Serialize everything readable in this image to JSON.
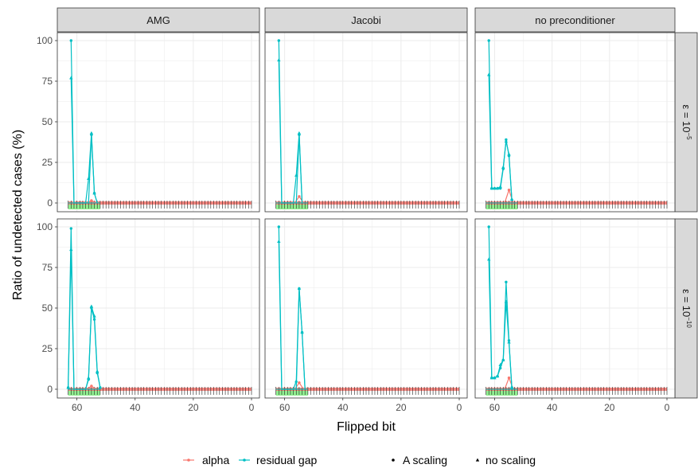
{
  "chart_data": {
    "type": "line",
    "facet_columns": [
      "AMG",
      "Jacobi",
      "no preconditioner"
    ],
    "facet_rows": [
      {
        "prefix": "ε = 10",
        "exp": "−5"
      },
      {
        "prefix": "ε = 10",
        "exp": "−10"
      }
    ],
    "xlabel": "Flipped bit",
    "ylabel": "Ratio of undetected cases (%)",
    "xlim": [
      64,
      0
    ],
    "ylim": [
      0,
      100
    ],
    "x_ticks": [
      60,
      40,
      20,
      0
    ],
    "y_ticks": [
      0,
      25,
      50,
      75,
      100
    ],
    "x_tick_labels": [
      "60",
      "40",
      "20",
      "0"
    ],
    "y_tick_labels": [
      "0",
      "25",
      "50",
      "75",
      "100"
    ],
    "legend": {
      "placement": "bottom",
      "colour_entries": [
        {
          "name": "alpha",
          "color": "#F8766D"
        },
        {
          "name": "residual gap",
          "color": "#00BFC4"
        }
      ],
      "shape_entries": [
        {
          "name": "A scaling",
          "shape": "circle"
        },
        {
          "name": "no scaling",
          "shape": "triangle"
        }
      ]
    },
    "colors": {
      "alpha": "#F8766D",
      "residual_gap": "#00BFC4",
      "green_band": "#90EE90",
      "strip_fill": "#D9D9D9",
      "grid": "#EBEBEB"
    },
    "green_band_x": [
      63,
      52
    ],
    "residual_gap_base": {
      "x_start": 63,
      "x_end": 52,
      "y": 0
    },
    "panels": [
      {
        "row": 0,
        "col": 0,
        "residual_gap": [
          {
            "scaling": "A scaling",
            "points": [
              [
                62,
                100
              ],
              [
                61,
                0
              ],
              [
                56,
                0
              ],
              [
                55,
                42
              ],
              [
                54,
                6
              ],
              [
                53,
                0
              ]
            ]
          },
          {
            "scaling": "no scaling",
            "points": [
              [
                62,
                77
              ],
              [
                61,
                0
              ],
              [
                57,
                0
              ],
              [
                56,
                15
              ],
              [
                55,
                43
              ],
              [
                54,
                6
              ],
              [
                53,
                0
              ]
            ]
          }
        ],
        "alpha": {
          "peaks": [
            [
              55,
              1.5
            ]
          ]
        }
      },
      {
        "row": 0,
        "col": 1,
        "residual_gap": [
          {
            "scaling": "A scaling",
            "points": [
              [
                62,
                100
              ],
              [
                61,
                0
              ],
              [
                56,
                0
              ],
              [
                55,
                42
              ],
              [
                54,
                0
              ]
            ]
          },
          {
            "scaling": "no scaling",
            "points": [
              [
                62,
                88
              ],
              [
                61,
                0
              ],
              [
                57,
                0
              ],
              [
                56,
                17
              ],
              [
                55,
                43
              ],
              [
                54,
                0
              ]
            ]
          }
        ],
        "alpha": {
          "peaks": [
            [
              55,
              4
            ]
          ]
        }
      },
      {
        "row": 0,
        "col": 2,
        "residual_gap": [
          {
            "scaling": "A scaling",
            "points": [
              [
                62,
                100
              ],
              [
                61,
                9
              ],
              [
                60,
                9
              ],
              [
                59,
                9
              ],
              [
                58,
                9
              ],
              [
                57,
                21
              ],
              [
                56,
                39
              ],
              [
                55,
                29
              ],
              [
                54,
                2
              ]
            ]
          },
          {
            "scaling": "no scaling",
            "points": [
              [
                62,
                79
              ],
              [
                61,
                9
              ],
              [
                60,
                9
              ],
              [
                59,
                9
              ],
              [
                58,
                10
              ],
              [
                57,
                22
              ],
              [
                56,
                38
              ],
              [
                55,
                30
              ],
              [
                54,
                2
              ]
            ]
          }
        ],
        "alpha": {
          "peaks": [
            [
              55,
              8
            ]
          ]
        }
      },
      {
        "row": 1,
        "col": 0,
        "residual_gap": [
          {
            "scaling": "A scaling",
            "points": [
              [
                63,
                1
              ],
              [
                62,
                99
              ],
              [
                61,
                0
              ],
              [
                57,
                0
              ],
              [
                56,
                6
              ],
              [
                55,
                50
              ],
              [
                54,
                43
              ],
              [
                53,
                10
              ],
              [
                52,
                1
              ]
            ]
          },
          {
            "scaling": "no scaling",
            "points": [
              [
                63,
                1
              ],
              [
                62,
                86
              ],
              [
                61,
                0
              ],
              [
                57,
                0
              ],
              [
                56,
                7
              ],
              [
                55,
                51
              ],
              [
                54,
                45
              ],
              [
                53,
                11
              ],
              [
                52,
                1
              ]
            ]
          }
        ],
        "alpha": {
          "peaks": [
            [
              55,
              2
            ]
          ]
        }
      },
      {
        "row": 1,
        "col": 1,
        "residual_gap": [
          {
            "scaling": "A scaling",
            "points": [
              [
                62,
                100
              ],
              [
                61,
                0
              ],
              [
                56,
                0
              ],
              [
                55,
                62
              ],
              [
                54,
                35
              ],
              [
                53,
                0
              ]
            ]
          },
          {
            "scaling": "no scaling",
            "points": [
              [
                62,
                91
              ],
              [
                61,
                0
              ],
              [
                57,
                0
              ],
              [
                56,
                5
              ],
              [
                55,
                62
              ],
              [
                54,
                35
              ],
              [
                53,
                0
              ]
            ]
          }
        ],
        "alpha": {
          "peaks": [
            [
              55,
              4
            ]
          ]
        }
      },
      {
        "row": 1,
        "col": 2,
        "residual_gap": [
          {
            "scaling": "A scaling",
            "points": [
              [
                62,
                100
              ],
              [
                61,
                7
              ],
              [
                60,
                7
              ],
              [
                59,
                8
              ],
              [
                58,
                13
              ],
              [
                57,
                18
              ],
              [
                56,
                66
              ],
              [
                55,
                30
              ],
              [
                54,
                1
              ]
            ]
          },
          {
            "scaling": "no scaling",
            "points": [
              [
                62,
                80
              ],
              [
                61,
                7
              ],
              [
                60,
                7
              ],
              [
                59,
                8
              ],
              [
                58,
                15
              ],
              [
                57,
                18
              ],
              [
                56,
                54
              ],
              [
                55,
                29
              ],
              [
                54,
                1
              ]
            ]
          }
        ],
        "alpha": {
          "peaks": [
            [
              55,
              7
            ]
          ]
        }
      }
    ]
  }
}
